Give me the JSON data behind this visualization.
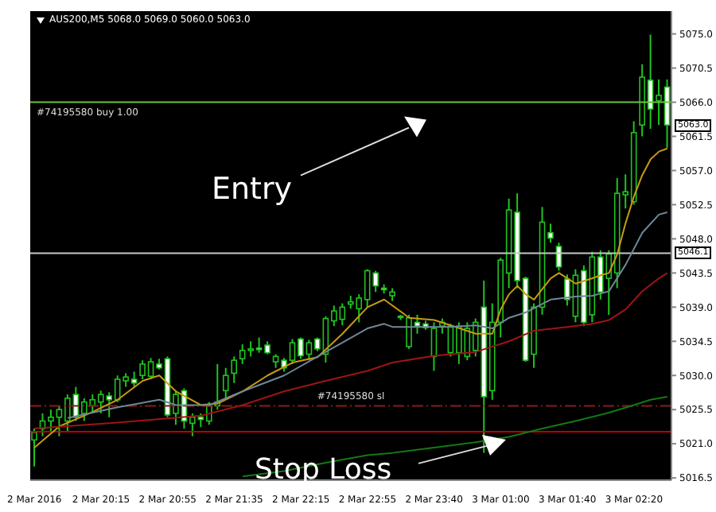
{
  "chart_data": {
    "type": "candlestick",
    "title": "AUS200,M5 5068.0 5069.0 5060.0 5063.0",
    "categories": [
      "2 Mar 2016",
      null,
      null,
      null,
      null,
      null,
      null,
      null,
      "2 Mar 20:15",
      null,
      null,
      null,
      null,
      null,
      null,
      null,
      "2 Mar 20:55",
      null,
      null,
      null,
      null,
      null,
      null,
      null,
      "2 Mar 21:35",
      null,
      null,
      null,
      null,
      null,
      null,
      null,
      "2 Mar 22:15",
      null,
      null,
      null,
      null,
      null,
      null,
      null,
      "2 Mar 22:55",
      null,
      null,
      null,
      null,
      null,
      null,
      null,
      "2 Mar 23:40",
      null,
      null,
      null,
      null,
      null,
      null,
      null,
      "3 Mar 01:00",
      null,
      null,
      null,
      null,
      null,
      null,
      null,
      "3 Mar 01:40",
      null,
      null,
      null,
      null,
      null,
      null,
      null,
      "3 Mar 02:20",
      null,
      null,
      null,
      null
    ],
    "color": "#1fc41f",
    "ohlc": [
      [
        5021.5,
        5023,
        5018,
        5022.5
      ],
      [
        5023,
        5025,
        5022,
        5024
      ],
      [
        5024,
        5025.5,
        5022.5,
        5024.5
      ],
      [
        5024.5,
        5026,
        5022,
        5025.5
      ],
      [
        5024,
        5027.5,
        5022.5,
        5027
      ],
      [
        5027.5,
        5028.5,
        5024,
        5024.5
      ],
      [
        5025,
        5027,
        5024,
        5026.5
      ],
      [
        5026,
        5027.5,
        5025,
        5026.8
      ],
      [
        5026.5,
        5028,
        5025,
        5027.5
      ],
      [
        5027.3,
        5027.8,
        5024.5,
        5026.8
      ],
      [
        5026.8,
        5030,
        5026.5,
        5029.5
      ],
      [
        5029.3,
        5030.3,
        5028.5,
        5029.8
      ],
      [
        5029.5,
        5030.5,
        5028.5,
        5029
      ],
      [
        5030,
        5032,
        5029.5,
        5031.5
      ],
      [
        5029.9,
        5032.3,
        5029.5,
        5031.8
      ],
      [
        5031.5,
        5032.2,
        5030.8,
        5031
      ],
      [
        5032.2,
        5032.5,
        5024.5,
        5024.8
      ],
      [
        5025,
        5028,
        5023.5,
        5027.5
      ],
      [
        5028,
        5028.3,
        5023,
        5024
      ],
      [
        5023.7,
        5025,
        5022,
        5024.5
      ],
      [
        5024.5,
        5025,
        5023.2,
        5024.2
      ],
      [
        5024,
        5026.5,
        5023.5,
        5026
      ],
      [
        5026,
        5031.5,
        5025.5,
        5026.5
      ],
      [
        5028,
        5031,
        5027,
        5030
      ],
      [
        5030.3,
        5032.5,
        5029,
        5032
      ],
      [
        5032.2,
        5034.1,
        5031.5,
        5033.3
      ],
      [
        5033.3,
        5034.5,
        5032.5,
        5033.5
      ],
      [
        5033.6,
        5035,
        5033,
        5033.4
      ],
      [
        5034,
        5034.5,
        5032.8,
        5033
      ],
      [
        5031.8,
        5032.8,
        5031,
        5032.5
      ],
      [
        5032,
        5032.3,
        5030.5,
        5031
      ],
      [
        5032,
        5034.8,
        5031.5,
        5034.3
      ],
      [
        5034.8,
        5035,
        5032.2,
        5032.6
      ],
      [
        5032.8,
        5034.7,
        5032,
        5034.3
      ],
      [
        5034.8,
        5035,
        5033.2,
        5033.5
      ],
      [
        5032.8,
        5037.8,
        5031.7,
        5037.5
      ],
      [
        5037.2,
        5039.2,
        5036.5,
        5038.5
      ],
      [
        5037.4,
        5039.5,
        5036.6,
        5039
      ],
      [
        5039.4,
        5040.5,
        5038.8,
        5039.7
      ],
      [
        5038.8,
        5040.7,
        5037,
        5040.2
      ],
      [
        5040,
        5044,
        5039,
        5043.8
      ],
      [
        5043.5,
        5043.8,
        5041,
        5041.8
      ],
      [
        5041.5,
        5042,
        5040.8,
        5041.3
      ],
      [
        5040.5,
        5041.5,
        5039.8,
        5041
      ],
      [
        5037.7,
        5038,
        5037.3,
        5037.8
      ],
      [
        5033.8,
        5038,
        5033.5,
        5037.6
      ],
      [
        5037,
        5038,
        5035.5,
        5036.5
      ],
      [
        5036.8,
        5037.2,
        5036,
        5036.3
      ],
      [
        5032.5,
        5037,
        5030.6,
        5036.2
      ],
      [
        5036.5,
        5037.5,
        5035.5,
        5037
      ],
      [
        5033,
        5036.8,
        5032.5,
        5036.5
      ],
      [
        5033,
        5037,
        5031.5,
        5036.5
      ],
      [
        5032.5,
        5037,
        5032,
        5036.2
      ],
      [
        5033.3,
        5037.5,
        5032.5,
        5037
      ],
      [
        5039,
        5042.5,
        5019.8,
        5027.2
      ],
      [
        5028,
        5039.5,
        5026.8,
        5037
      ],
      [
        5037,
        5045.5,
        5035,
        5045.2
      ],
      [
        5043.5,
        5053.3,
        5041.5,
        5051.8
      ],
      [
        5051.5,
        5054,
        5041.5,
        5042.5
      ],
      [
        5042.8,
        5043,
        5031.8,
        5032
      ],
      [
        5032.8,
        5039.5,
        5031,
        5039
      ],
      [
        5039,
        5052.2,
        5038,
        5050.2
      ],
      [
        5048.8,
        5050,
        5047.5,
        5048.1
      ],
      [
        5047,
        5047.5,
        5043.8,
        5044.3
      ],
      [
        5042.7,
        5043.3,
        5039.2,
        5040
      ],
      [
        5037.8,
        5044,
        5037,
        5043.2
      ],
      [
        5043.8,
        5044.5,
        5036.5,
        5037
      ],
      [
        5038,
        5046.3,
        5037,
        5045.6
      ],
      [
        5045.6,
        5046.5,
        5040,
        5041
      ],
      [
        5042.8,
        5046.5,
        5038,
        5046
      ],
      [
        5043.5,
        5056,
        5041.5,
        5054
      ],
      [
        5053.8,
        5056.5,
        5052,
        5054.2
      ],
      [
        5052.9,
        5063.5,
        5052.5,
        5062
      ],
      [
        5063,
        5071,
        5061.5,
        5069.3
      ],
      [
        5068.9,
        5074.9,
        5062.5,
        5065.1
      ],
      [
        5066.2,
        5069,
        5063,
        5066.9
      ],
      [
        5068,
        5069,
        5060,
        5063
      ]
    ],
    "series": [
      {
        "type": "line",
        "color": "#c89a10",
        "values": [
          5020.5,
          null,
          null,
          5023.3,
          null,
          null,
          null,
          5025.2,
          null,
          null,
          5026.8,
          null,
          null,
          5029.3,
          null,
          5030,
          null,
          5027.9,
          null,
          null,
          5026.1,
          null,
          5026.3,
          null,
          null,
          5027.9,
          null,
          null,
          5030,
          null,
          null,
          5031.7,
          null,
          null,
          5032.4,
          null,
          null,
          5035.5,
          null,
          null,
          5039,
          null,
          5040,
          null,
          null,
          5037.6,
          null,
          null,
          5037.3,
          null,
          5036.6,
          null,
          null,
          5035.5,
          null,
          5035.5,
          5038.7,
          5040.7,
          5041.8,
          5040.7,
          5040,
          5041.4,
          5042.8,
          5043.5,
          5042.8,
          5042.1,
          null,
          5042.8,
          5043.2,
          5043.5,
          5046,
          5050.1,
          5053.6,
          5056.4,
          5058.5,
          5059.5,
          5059.9
        ]
      },
      {
        "type": "line",
        "color": "#6f8797",
        "values": [
          null,
          null,
          null,
          null,
          5024.4,
          null,
          null,
          null,
          null,
          null,
          5025.8,
          null,
          null,
          null,
          null,
          5026.8,
          null,
          5026.1,
          null,
          null,
          null,
          5026.1,
          null,
          null,
          null,
          5027.9,
          null,
          null,
          null,
          null,
          5030,
          null,
          null,
          null,
          null,
          5033.1,
          null,
          null,
          null,
          null,
          5036.2,
          null,
          5036.8,
          5036.4,
          null,
          null,
          5036.4,
          null,
          null,
          null,
          5036.4,
          null,
          null,
          5036.6,
          null,
          5036.2,
          null,
          5037.6,
          null,
          5038.3,
          null,
          null,
          5040,
          null,
          null,
          5040.4,
          null,
          5040.5,
          null,
          5041.1,
          null,
          5044.6,
          null,
          5048.8,
          null,
          5051.2,
          5051.5
        ]
      },
      {
        "type": "line",
        "color": "#9e1414",
        "values": [
          5023,
          null,
          null,
          null,
          null,
          null,
          null,
          null,
          null,
          null,
          5023.8,
          null,
          null,
          null,
          null,
          null,
          null,
          null,
          null,
          null,
          5024.7,
          null,
          null,
          null,
          null,
          5026.1,
          null,
          null,
          null,
          null,
          5027.9,
          null,
          null,
          null,
          null,
          5029.3,
          null,
          null,
          null,
          null,
          5030.6,
          null,
          null,
          5031.7,
          null,
          null,
          null,
          null,
          5032.6,
          null,
          null,
          null,
          null,
          5033.1,
          null,
          null,
          null,
          5034.5,
          null,
          null,
          5035.9,
          null,
          null,
          null,
          5036.4,
          null,
          null,
          5036.8,
          null,
          5037.3,
          null,
          5038.7,
          null,
          5041.1,
          null,
          5042.8,
          5043.5
        ]
      },
      {
        "type": "line",
        "color": "#137a13",
        "values": [
          null,
          null,
          null,
          null,
          null,
          null,
          null,
          null,
          null,
          null,
          null,
          null,
          null,
          null,
          null,
          null,
          null,
          null,
          null,
          null,
          null,
          null,
          null,
          null,
          null,
          5016.7,
          null,
          null,
          null,
          null,
          5017.4,
          null,
          null,
          null,
          null,
          5018.5,
          null,
          null,
          null,
          null,
          5019.5,
          null,
          null,
          5019.8,
          null,
          null,
          null,
          null,
          5020.5,
          null,
          null,
          null,
          null,
          5021.2,
          null,
          null,
          null,
          5021.9,
          null,
          null,
          null,
          5023,
          null,
          null,
          null,
          5024,
          null,
          null,
          null,
          5025.1,
          null,
          null,
          5026.1,
          null,
          5026.8,
          null,
          5027.2
        ]
      }
    ],
    "ylim": [
      5016.2,
      5078
    ],
    "yticks": [
      {
        "value": 5016.5,
        "label": "5016.5"
      },
      {
        "value": 5021,
        "label": "5021.0"
      },
      {
        "value": 5025.5,
        "label": "5025.5"
      },
      {
        "value": 5030,
        "label": "5030.0"
      },
      {
        "value": 5034.5,
        "label": "5034.5"
      },
      {
        "value": 5039,
        "label": "5039.0"
      },
      {
        "value": 5043.5,
        "label": "5043.5"
      },
      {
        "value": 5048,
        "label": "5048.0"
      },
      {
        "value": 5052.5,
        "label": "5052.5"
      },
      {
        "value": 5057,
        "label": "5057.0"
      },
      {
        "value": 5061.5,
        "label": "5061.5"
      },
      {
        "value": 5066,
        "label": "5066.0"
      },
      {
        "value": 5070.5,
        "label": "5070.5"
      },
      {
        "value": 5075,
        "label": "5075.0"
      }
    ],
    "ref_lines": [
      {
        "axis": "y",
        "value": 5066.0,
        "label": "#74195580 buy 1.00",
        "color": "#6cc23c",
        "line_style": "solid"
      },
      {
        "axis": "y",
        "value": 5046.1,
        "color": "#c8c8c8",
        "line_style": "solid"
      },
      {
        "axis": "y",
        "value": 5026.0,
        "label": "#74195580 sl",
        "color": "#8b1a1a",
        "line_style": "dashed"
      },
      {
        "axis": "y",
        "value": 5022.6,
        "color": "#c00000",
        "line_style": "solid"
      }
    ],
    "annotations": [
      {
        "text": "Entry",
        "y": 5066.0
      },
      {
        "text": "Stop Loss",
        "y": 5022.6
      },
      {
        "text": "5063.0",
        "y": 5063.0
      },
      {
        "text": "5046.1",
        "y": 5046.1
      }
    ]
  }
}
